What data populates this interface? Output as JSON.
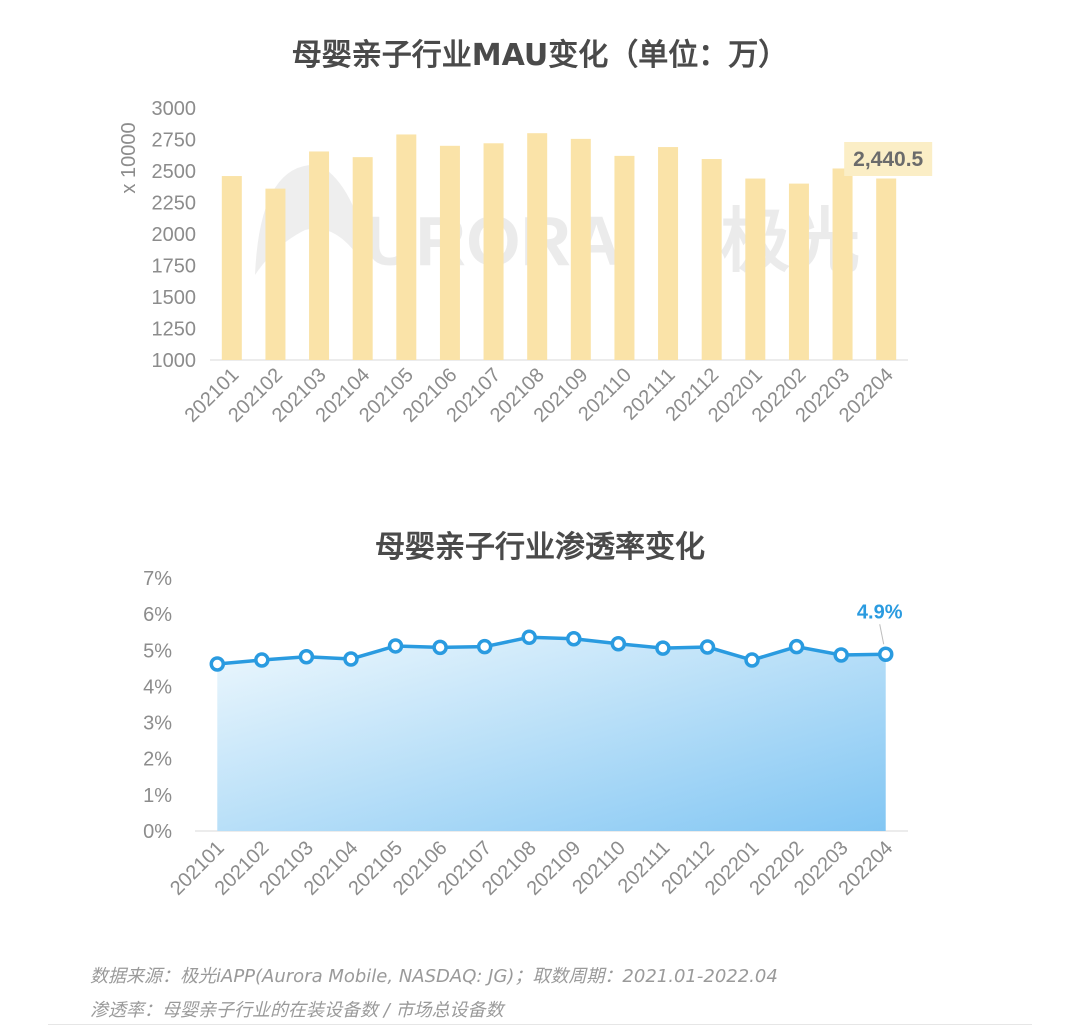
{
  "chart_data": [
    {
      "type": "bar",
      "title": "母婴亲子行业MAU变化（单位：万）",
      "y_unit_label": "x 10000",
      "categories": [
        "202101",
        "202102",
        "202103",
        "202104",
        "202105",
        "202106",
        "202107",
        "202108",
        "202109",
        "202110",
        "202111",
        "202112",
        "202201",
        "202202",
        "202203",
        "202204"
      ],
      "values": [
        2460,
        2360,
        2655,
        2610,
        2790,
        2700,
        2720,
        2800,
        2755,
        2620,
        2690,
        2595,
        2440,
        2400,
        2520,
        2440.5
      ],
      "ylim": [
        1000,
        3000
      ],
      "yticks": [
        "1000",
        "1250",
        "1500",
        "1750",
        "2000",
        "2250",
        "2500",
        "2750",
        "3000"
      ],
      "callout": {
        "category": "202204",
        "text": "2,440.5"
      },
      "bar_color": "#fae3a8",
      "callout_bg": "#fbeec6"
    },
    {
      "type": "area",
      "title": "母婴亲子行业渗透率变化",
      "categories": [
        "202101",
        "202102",
        "202103",
        "202104",
        "202105",
        "202106",
        "202107",
        "202108",
        "202109",
        "202110",
        "202111",
        "202112",
        "202201",
        "202202",
        "202203",
        "202204"
      ],
      "values": [
        4.62,
        4.73,
        4.82,
        4.76,
        5.12,
        5.08,
        5.1,
        5.36,
        5.32,
        5.18,
        5.06,
        5.09,
        4.73,
        5.1,
        4.87,
        4.89
      ],
      "ylim": [
        0,
        7
      ],
      "yticks": [
        "0%",
        "1%",
        "2%",
        "3%",
        "4%",
        "5%",
        "6%",
        "7%"
      ],
      "callout": {
        "category": "202204",
        "text": "4.9%"
      },
      "line_color": "#2a9be0"
    }
  ],
  "watermark": {
    "brand": "URORA",
    "brand_cn": "极光"
  },
  "notes": {
    "source": "数据来源：极光iAPP(Aurora Mobile, NASDAQ: JG)；取数周期：2021.01-2022.04",
    "penetration": "渗透率：母婴亲子行业的在装设备数 / 市场总设备数"
  }
}
